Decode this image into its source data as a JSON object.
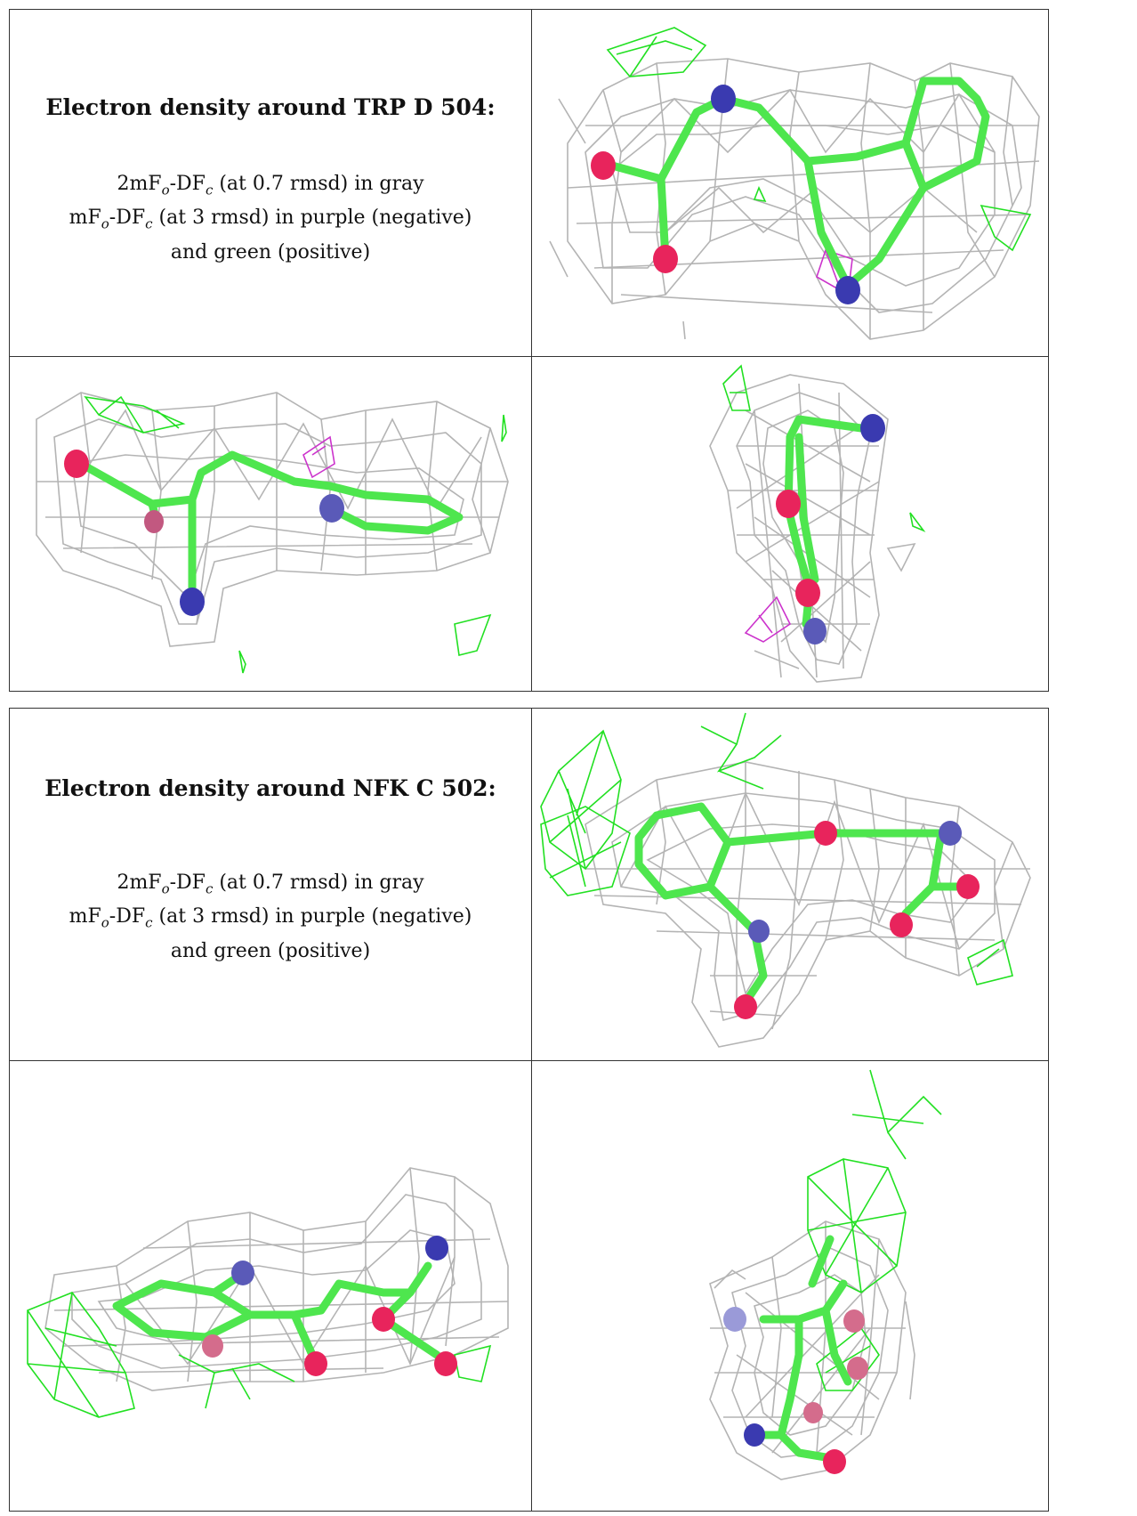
{
  "panels": [
    {
      "heading": "Electron density around TRP D 504:",
      "caption": {
        "line1": [
          "2mF",
          "o",
          "-DF",
          "c",
          " (at 0.7 rmsd) in gray"
        ],
        "line2": [
          "mF",
          "o",
          "-DF",
          "c",
          " (at 3 rmsd) in purple (negative)"
        ],
        "line3": "and green (positive)"
      }
    },
    {
      "heading": "Electron density around NFK C 502:",
      "caption": {
        "line1": [
          "2mF",
          "o",
          "-DF",
          "c",
          " (at 0.7 rmsd) in gray"
        ],
        "line2": [
          "mF",
          "o",
          "-DF",
          "c",
          " (at 3 rmsd) in purple (negative)"
        ],
        "line3": "and green (positive)"
      }
    }
  ],
  "colors": {
    "mesh_gray": "#b4b4b4",
    "mesh_green": "#22e022",
    "mesh_purple": "#cc33cc",
    "carbon": "#4ee64e",
    "oxygen": "#e8245c",
    "nitrogen": "#3a3ab0"
  }
}
